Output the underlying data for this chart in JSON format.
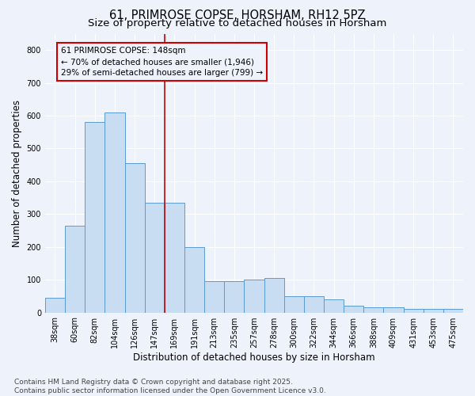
{
  "title_line1": "61, PRIMROSE COPSE, HORSHAM, RH12 5PZ",
  "title_line2": "Size of property relative to detached houses in Horsham",
  "xlabel": "Distribution of detached houses by size in Horsham",
  "ylabel": "Number of detached properties",
  "categories": [
    "38sqm",
    "60sqm",
    "82sqm",
    "104sqm",
    "126sqm",
    "147sqm",
    "169sqm",
    "191sqm",
    "213sqm",
    "235sqm",
    "257sqm",
    "278sqm",
    "300sqm",
    "322sqm",
    "344sqm",
    "366sqm",
    "388sqm",
    "409sqm",
    "431sqm",
    "453sqm",
    "475sqm"
  ],
  "values": [
    45,
    265,
    580,
    610,
    455,
    335,
    335,
    200,
    95,
    95,
    100,
    105,
    50,
    50,
    40,
    20,
    15,
    15,
    10,
    10,
    10
  ],
  "bar_color": "#c9ddf2",
  "bar_edge_color": "#5b9bd5",
  "vline_x": 5.5,
  "vline_color": "#cc0000",
  "annotation_text": "61 PRIMROSE COPSE: 148sqm\n← 70% of detached houses are smaller (1,946)\n29% of semi-detached houses are larger (799) →",
  "annotation_box_color": "#cc0000",
  "ylim": [
    0,
    850
  ],
  "yticks": [
    0,
    100,
    200,
    300,
    400,
    500,
    600,
    700,
    800
  ],
  "footer_text": "Contains HM Land Registry data © Crown copyright and database right 2025.\nContains public sector information licensed under the Open Government Licence v3.0.",
  "bg_color": "#eef2fb",
  "grid_color": "#ffffff",
  "title_fontsize": 10.5,
  "subtitle_fontsize": 9.5,
  "label_fontsize": 8.5,
  "tick_fontsize": 7,
  "footer_fontsize": 6.5,
  "ann_fontsize": 7.5
}
